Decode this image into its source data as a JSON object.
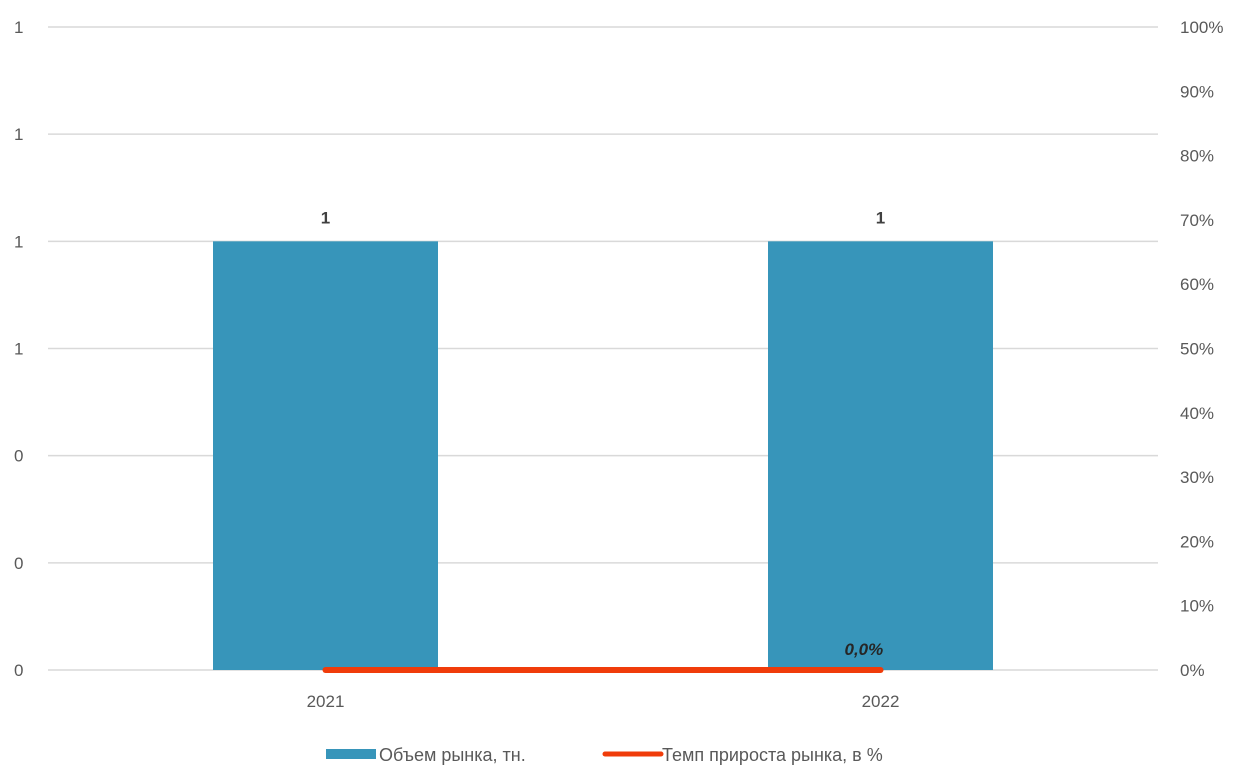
{
  "chart_data": {
    "type": "bar",
    "categories": [
      "2021",
      "2022"
    ],
    "series": [
      {
        "name": "Объем рынка, тн.",
        "type": "bar",
        "axis": "left",
        "values": [
          1,
          1
        ],
        "data_labels": [
          "1",
          "1"
        ],
        "color": "#3795BA"
      },
      {
        "name": "Темп прироста рынка, в %",
        "type": "line",
        "axis": "right",
        "values": [
          0,
          0
        ],
        "data_labels": [
          "",
          "0,0%"
        ],
        "color": "#F03C0A"
      }
    ],
    "y_left": {
      "ylim": [
        0,
        1.2
      ],
      "ticks": [
        0,
        0.2,
        0.4,
        0.6,
        0.8,
        1.0,
        1.2
      ],
      "tick_labels": [
        "0",
        "0",
        "0",
        "1",
        "1",
        "1",
        "1"
      ]
    },
    "y_right": {
      "ylim": [
        0,
        1.0
      ],
      "ticks": [
        0,
        0.1,
        0.2,
        0.3,
        0.4,
        0.5,
        0.6,
        0.7,
        0.8,
        0.9,
        1.0
      ],
      "tick_labels": [
        "0%",
        "10%",
        "20%",
        "30%",
        "40%",
        "50%",
        "60%",
        "70%",
        "80%",
        "90%",
        "100%"
      ]
    },
    "title": "",
    "xlabel": "",
    "ylabel": "",
    "grid": true,
    "legend_position": "bottom",
    "gridline_color": "#D9D9D9"
  }
}
